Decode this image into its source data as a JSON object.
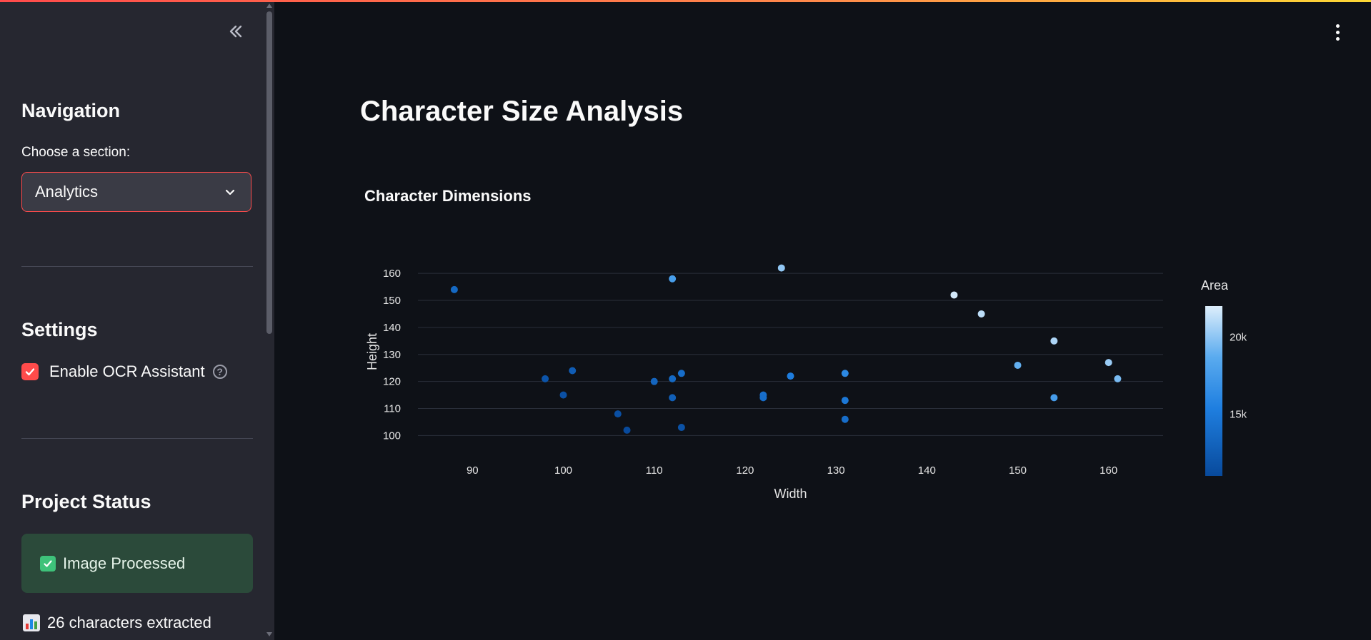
{
  "sidebar": {
    "navigation_heading": "Navigation",
    "section_label": "Choose a section:",
    "section_selected": "Analytics",
    "settings_heading": "Settings",
    "ocr_toggle_label": "Enable OCR Assistant",
    "ocr_enabled": true,
    "project_status_heading": "Project Status",
    "status_message": "Image Processed",
    "extracted_text": "26 characters extracted"
  },
  "main": {
    "page_title": "Character Size Analysis",
    "chart_title": "Character Dimensions"
  },
  "colors": {
    "accent": "#ff4b4b",
    "background": "#0e1117",
    "sidebar": "#262730",
    "success_bg": "#2b4a3a"
  },
  "chart_data": {
    "type": "scatter",
    "title": "Character Dimensions",
    "xlabel": "Width",
    "ylabel": "Height",
    "xlim": [
      84,
      166
    ],
    "ylim": [
      98,
      164
    ],
    "x_ticks": [
      90,
      100,
      110,
      120,
      130,
      140,
      150,
      160
    ],
    "y_ticks": [
      100,
      110,
      120,
      130,
      140,
      150,
      160
    ],
    "grid": "horizontal",
    "colorbar": {
      "title": "Area",
      "range": [
        11000,
        22000
      ],
      "ticks": [
        {
          "value": 15000,
          "label": "15k"
        },
        {
          "value": 20000,
          "label": "20k"
        }
      ],
      "colors": [
        "#084a9c",
        "#1f7fe0",
        "#5aabef",
        "#ddeefb"
      ]
    },
    "points": [
      {
        "x": 88,
        "y": 154,
        "area": 13552
      },
      {
        "x": 98,
        "y": 121,
        "area": 11858
      },
      {
        "x": 100,
        "y": 115,
        "area": 11500
      },
      {
        "x": 101,
        "y": 124,
        "area": 12524
      },
      {
        "x": 106,
        "y": 108,
        "area": 11448
      },
      {
        "x": 107,
        "y": 102,
        "area": 10914
      },
      {
        "x": 110,
        "y": 120,
        "area": 13200
      },
      {
        "x": 112,
        "y": 158,
        "area": 17696
      },
      {
        "x": 112,
        "y": 121,
        "area": 13552
      },
      {
        "x": 112,
        "y": 114,
        "area": 12768
      },
      {
        "x": 113,
        "y": 123,
        "area": 13899
      },
      {
        "x": 113,
        "y": 103,
        "area": 11639
      },
      {
        "x": 122,
        "y": 115,
        "area": 14030
      },
      {
        "x": 122,
        "y": 114,
        "area": 13908
      },
      {
        "x": 124,
        "y": 162,
        "area": 20088
      },
      {
        "x": 125,
        "y": 122,
        "area": 15250
      },
      {
        "x": 131,
        "y": 123,
        "area": 16113
      },
      {
        "x": 131,
        "y": 113,
        "area": 14803
      },
      {
        "x": 131,
        "y": 106,
        "area": 13886
      },
      {
        "x": 143,
        "y": 152,
        "area": 21736
      },
      {
        "x": 146,
        "y": 145,
        "area": 21170
      },
      {
        "x": 150,
        "y": 126,
        "area": 18900
      },
      {
        "x": 154,
        "y": 135,
        "area": 20790
      },
      {
        "x": 154,
        "y": 114,
        "area": 17556
      },
      {
        "x": 160,
        "y": 127,
        "area": 20320
      },
      {
        "x": 161,
        "y": 121,
        "area": 19481
      }
    ]
  }
}
